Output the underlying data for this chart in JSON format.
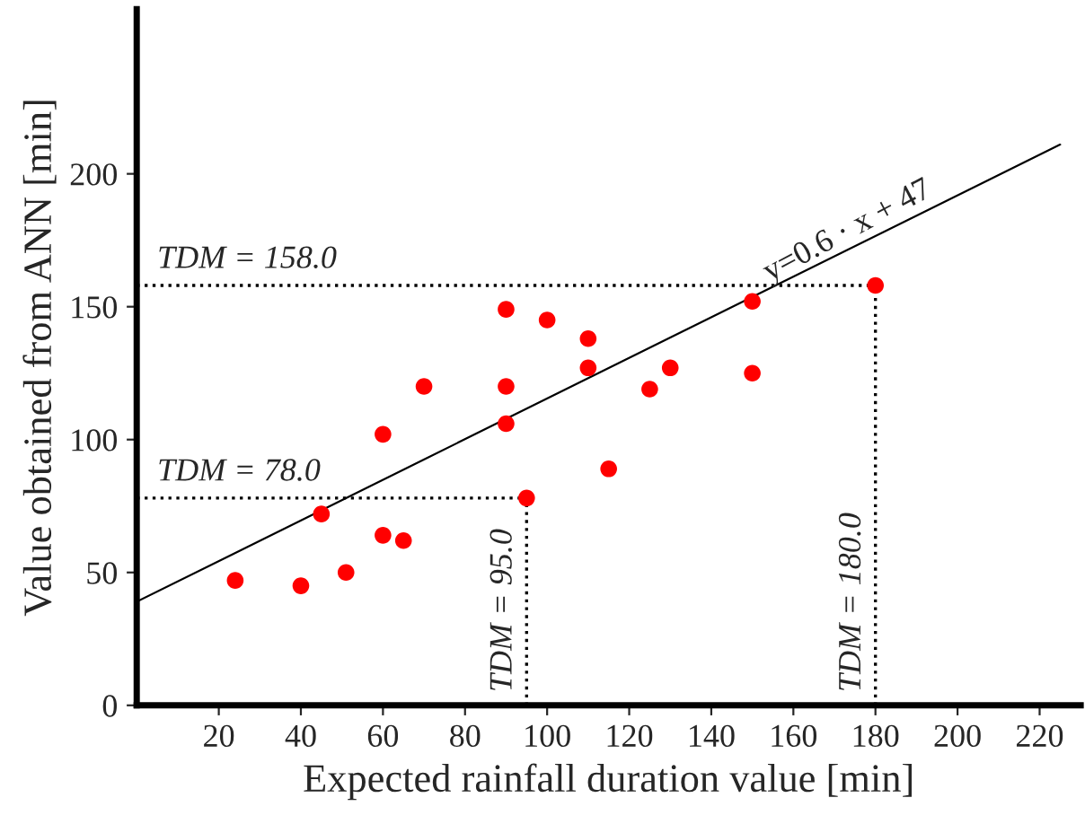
{
  "chart_data": {
    "type": "scatter",
    "xlabel": "Expected rainfall duration value [min]",
    "ylabel": "Value obtained from ANN [min]",
    "xlim": [
      0,
      230
    ],
    "ylim": [
      0,
      262
    ],
    "xticks": [
      20,
      40,
      60,
      80,
      100,
      120,
      140,
      160,
      180,
      200,
      220
    ],
    "yticks": [
      0,
      50,
      100,
      150,
      200
    ],
    "grid": false,
    "marker": "circle",
    "series": [
      {
        "color": "#ff0000",
        "x": [
          24,
          40,
          51,
          45,
          60,
          65,
          60,
          70,
          90,
          90,
          90,
          95,
          100,
          110,
          110,
          115,
          125,
          130,
          150,
          150,
          180
        ],
        "values": [
          47,
          45,
          50,
          72,
          64,
          62,
          102,
          120,
          149,
          120,
          106,
          78,
          145,
          138,
          127,
          89,
          119,
          127,
          152,
          125,
          158
        ]
      },
      {
        "type": "line",
        "marker": "none",
        "color": "#000000",
        "x": [
          0,
          225
        ],
        "values": [
          39,
          211
        ]
      }
    ],
    "ref_lines": [
      {
        "axis": "y",
        "value": 158,
        "label": "TDM = 158.0",
        "line_style": "dotted",
        "color": "#000000"
      },
      {
        "axis": "y",
        "value": 78,
        "label": "TDM = 78.0",
        "line_style": "dotted",
        "color": "#000000"
      },
      {
        "axis": "x",
        "value": 95,
        "label": "TDM = 95.0",
        "line_style": "dotted",
        "color": "#000000"
      },
      {
        "axis": "x",
        "value": 180,
        "label": "TDM = 180.0",
        "line_style": "dotted",
        "color": "#000000"
      }
    ],
    "annotations": [
      {
        "text": "y=0.6 · x + 47",
        "x": 155,
        "y": 157
      }
    ]
  }
}
